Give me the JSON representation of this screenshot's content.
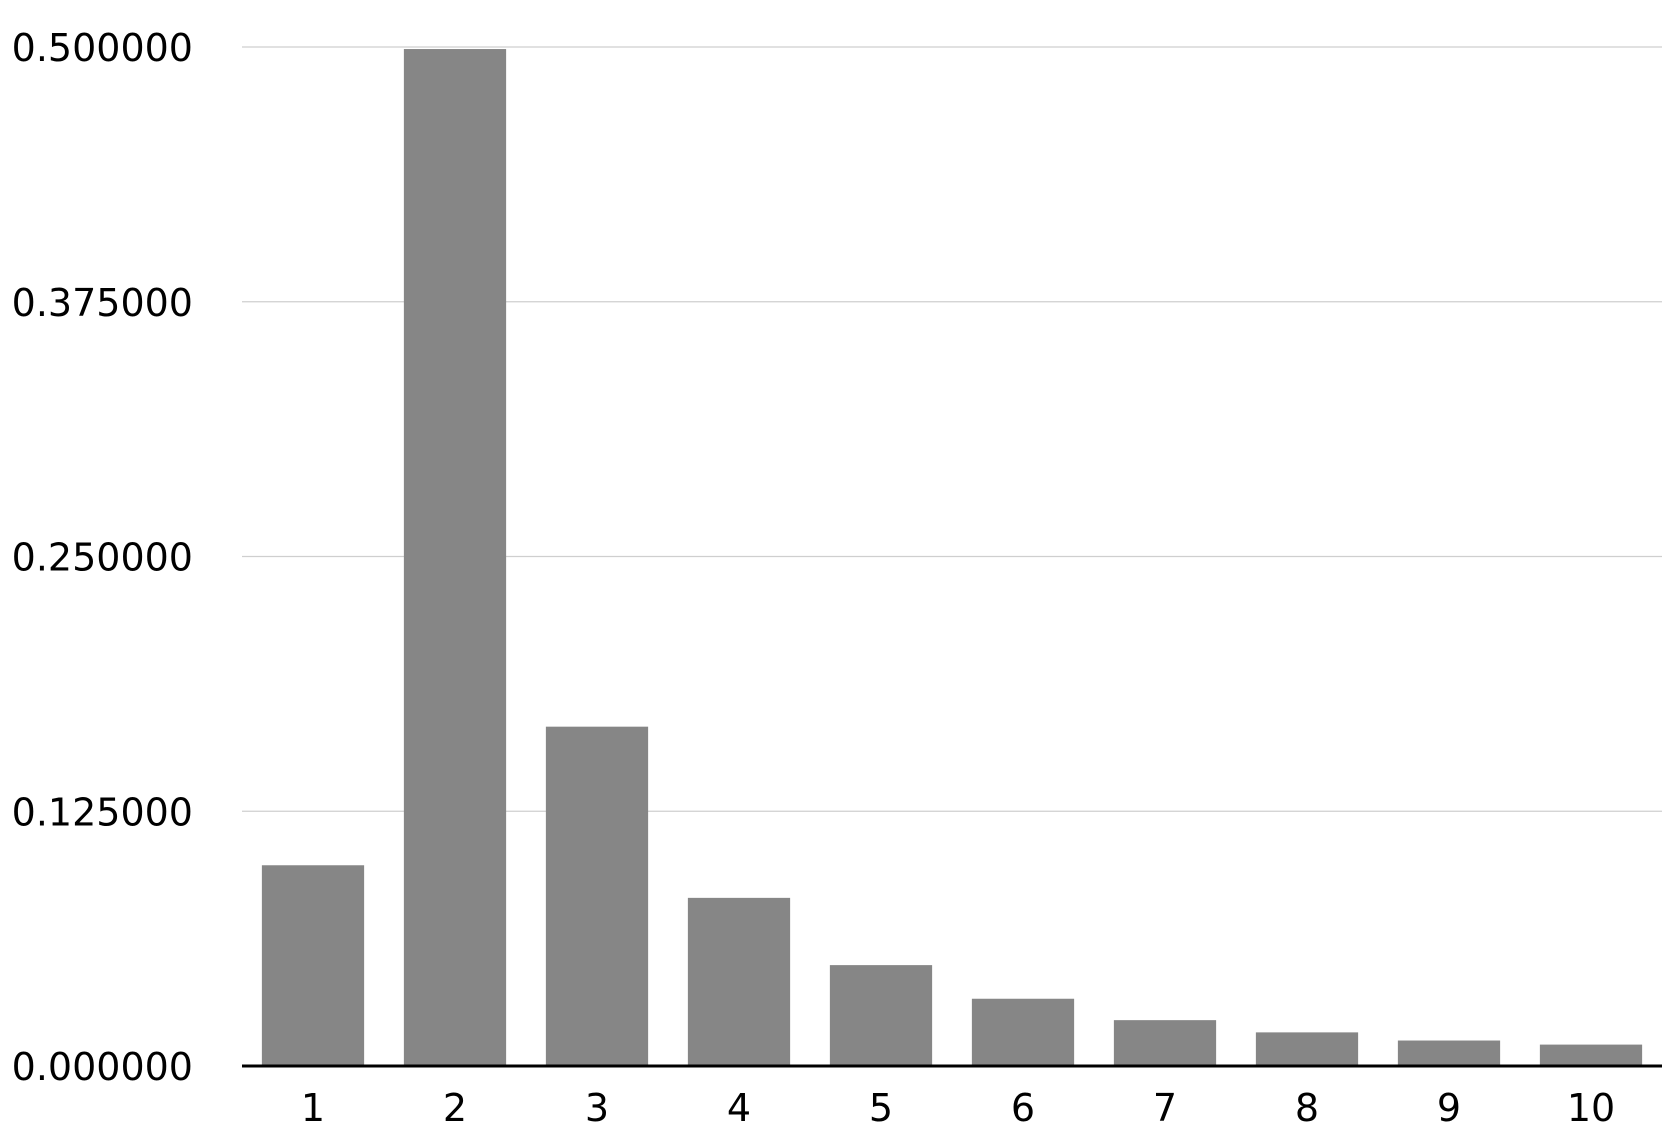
{
  "chart_data": {
    "type": "bar",
    "categories": [
      "1",
      "2",
      "3",
      "4",
      "5",
      "6",
      "7",
      "8",
      "9",
      "10"
    ],
    "values": [
      0.0985,
      0.499,
      0.1665,
      0.0825,
      0.0495,
      0.033,
      0.0225,
      0.0165,
      0.0125,
      0.0105
    ],
    "ylim": [
      0,
      0.5
    ],
    "yticks": [
      "0.000000",
      "0.125000",
      "0.250000",
      "0.375000",
      "0.500000"
    ],
    "ytick_values": [
      0,
      0.125,
      0.25,
      0.375,
      0.5
    ],
    "grid": true,
    "colors": {
      "bar": "#868686",
      "grid": "#cfcfcf",
      "axis": "#000000",
      "text": "#000000"
    }
  }
}
